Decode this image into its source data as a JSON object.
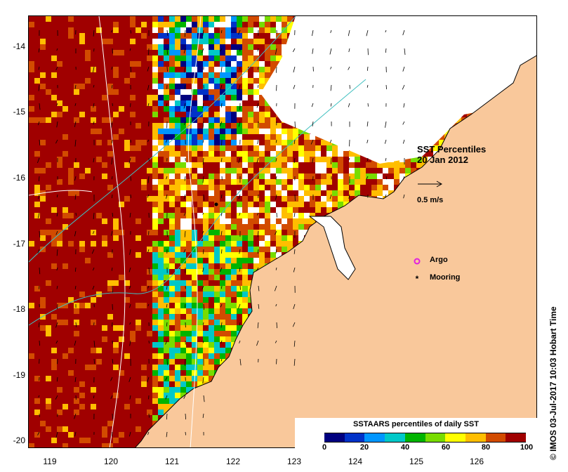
{
  "map": {
    "title_line1": "SST Percentiles",
    "title_line2": "20 Jan 2012",
    "vector_scale_label": "0.5 m/s",
    "legend": [
      {
        "label": "Argo",
        "symbol": "magenta-circle-icon",
        "color": "#e020e0"
      },
      {
        "label": "Mooring",
        "symbol": "black-star-icon",
        "color": "#000000"
      }
    ],
    "credit": "© IMOS 03-Jul-2017 10:03 Hobart Time",
    "lat_ticks": [
      "-14",
      "-15",
      "-16",
      "-17",
      "-18",
      "-19",
      "-20"
    ],
    "lon_ticks": [
      "119",
      "120",
      "121",
      "122",
      "123",
      "124",
      "125",
      "126"
    ],
    "land_color": "#f9c89b",
    "colorbar": {
      "title": "SSTAARS percentiles of daily SST",
      "ticks": [
        "0",
        "20",
        "40",
        "60",
        "80",
        "100"
      ],
      "colors": [
        "#00007f",
        "#0032c8",
        "#0096ff",
        "#00c8c8",
        "#00b400",
        "#78dc00",
        "#ffff00",
        "#ffbe00",
        "#d24b00",
        "#a00000"
      ]
    }
  }
}
